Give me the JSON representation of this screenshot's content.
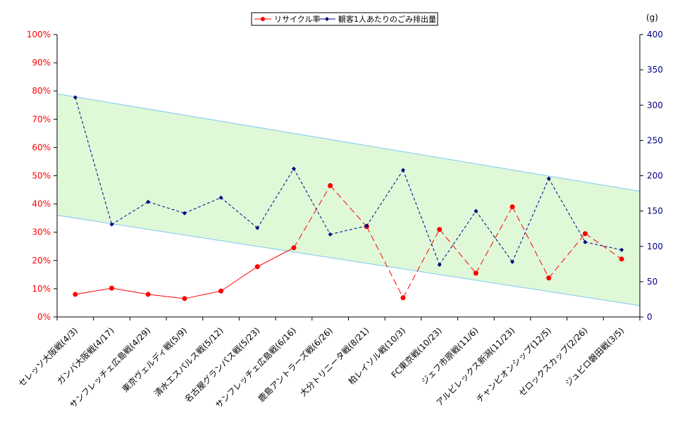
{
  "chart_data": {
    "type": "line",
    "title": "",
    "xlabel": "",
    "ylabel": "",
    "y2label": "(g)",
    "ylim": [
      0,
      100
    ],
    "y_unit": "%",
    "y2lim": [
      0,
      400
    ],
    "y_ticks": [
      0,
      10,
      20,
      30,
      40,
      50,
      60,
      70,
      80,
      90,
      100
    ],
    "y2_ticks": [
      0,
      50,
      100,
      150,
      200,
      250,
      300,
      350,
      400
    ],
    "grid": false,
    "legend_position": "top",
    "categories": [
      "セレッソ大阪戦(4/3)",
      "ガンバ大阪戦(4/17)",
      "サンフレッチェ広島戦(4/29)",
      "東京ヴェルディ戦(5/9)",
      "清水エスパルス戦(5/12)",
      "名古屋グランパス戦(5/23)",
      "サンフレッチェ広島戦(6/16)",
      "鹿島アントラーズ戦(6/26)",
      "大分トリニータ戦(8/21)",
      "柏レイソル戦(10/3)",
      "FC東京戦(10/23)",
      "ジェフ市原戦(11/6)",
      "アルビレックス新潟(11/23)",
      "チャンピオンシップ(12/5)",
      "ゼロックスカップ(2/26)",
      "ジュビロ磐田戦(3/5)"
    ],
    "series": [
      {
        "name": "リサイクル率",
        "axis": "left",
        "color": "#ff0000",
        "values": [
          8,
          10.2,
          8,
          6.5,
          9.2,
          17.8,
          24.5,
          46.5,
          32,
          6.8,
          31,
          15.5,
          39,
          13.8,
          29.5,
          20.5
        ]
      },
      {
        "name": "観客1人あたりのごみ排出量",
        "axis": "right",
        "color": "#000080",
        "values": [
          311,
          131,
          163,
          147,
          169,
          126,
          210,
          117,
          129,
          208,
          74,
          150,
          78,
          196,
          106,
          95
        ]
      }
    ],
    "band": {
      "fill": "#dff8d8",
      "stroke": "#80c8f0",
      "upper_start_pct": 79,
      "upper_end_pct": 44.5,
      "lower_start_pct": 36,
      "lower_end_pct": 4
    }
  }
}
